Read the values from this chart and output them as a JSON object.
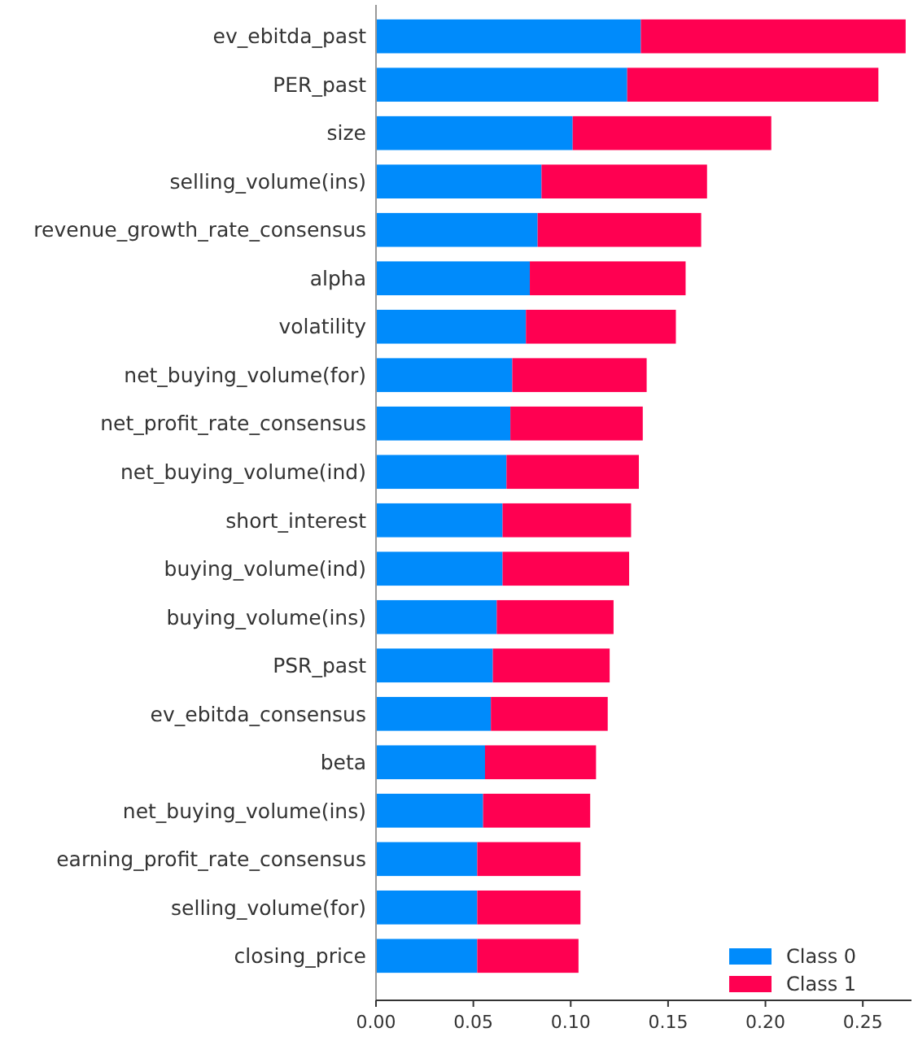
{
  "chart_data": {
    "type": "bar",
    "orientation": "horizontal",
    "stacked": true,
    "categories": [
      "ev_ebitda_past",
      "PER_past",
      "size",
      "selling_volume(ins)",
      "revenue_growth_rate_consensus",
      "alpha",
      "volatility",
      "net_buying_volume(for)",
      "net_profit_rate_consensus",
      "net_buying_volume(ind)",
      "short_interest",
      "buying_volume(ind)",
      "buying_volume(ins)",
      "PSR_past",
      "ev_ebitda_consensus",
      "beta",
      "net_buying_volume(ins)",
      "earning_profit_rate_consensus",
      "selling_volume(for)",
      "closing_price"
    ],
    "series": [
      {
        "name": "Class 0",
        "color": "#008bfb",
        "values": [
          0.136,
          0.129,
          0.101,
          0.085,
          0.083,
          0.079,
          0.077,
          0.07,
          0.069,
          0.067,
          0.065,
          0.065,
          0.062,
          0.06,
          0.059,
          0.056,
          0.055,
          0.052,
          0.052,
          0.052
        ]
      },
      {
        "name": "Class 1",
        "color": "#ff0051",
        "values": [
          0.136,
          0.129,
          0.102,
          0.085,
          0.084,
          0.08,
          0.077,
          0.069,
          0.068,
          0.068,
          0.066,
          0.065,
          0.06,
          0.06,
          0.06,
          0.057,
          0.055,
          0.053,
          0.053,
          0.052
        ]
      }
    ],
    "xlim": [
      0,
      0.275
    ],
    "xticks": [
      {
        "value": 0,
        "label": "0.00"
      },
      {
        "value": 0.05,
        "label": "0.05"
      },
      {
        "value": 0.1,
        "label": "0.10"
      },
      {
        "value": 0.15,
        "label": "0.15"
      },
      {
        "value": 0.2,
        "label": "0.20"
      },
      {
        "value": 0.25,
        "label": "0.25"
      }
    ],
    "grid": false,
    "legend": "bottom right"
  }
}
